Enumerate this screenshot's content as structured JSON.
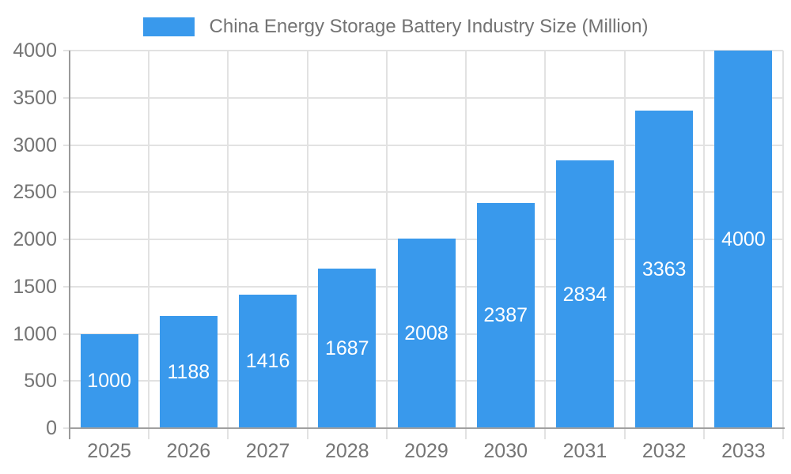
{
  "chart_data": {
    "type": "bar",
    "title": "China Energy Storage Battery Industry Size (Million)",
    "legend": {
      "position": "top",
      "entries": [
        "China Energy Storage Battery Industry Size (Million)"
      ]
    },
    "categories": [
      "2025",
      "2026",
      "2027",
      "2028",
      "2029",
      "2030",
      "2031",
      "2032",
      "2033"
    ],
    "series": [
      {
        "name": "China Energy Storage Battery Industry Size (Million)",
        "values": [
          1000,
          1188,
          1416,
          1687,
          2008,
          2387,
          2834,
          3363,
          4000
        ]
      }
    ],
    "value_labels_shown": true,
    "xlabel": "",
    "ylabel": "",
    "ylim": [
      0,
      4000
    ],
    "yticks": [
      0,
      500,
      1000,
      1500,
      2000,
      2500,
      3000,
      3500,
      4000
    ],
    "grid": true,
    "colors": {
      "bar": "#3999EC",
      "value_label": "#FFFFFF",
      "axis_text": "#757575",
      "grid_line": "#E2E2E2",
      "axis_line": "#9E9E9E",
      "background": "#FFFFFF"
    }
  }
}
